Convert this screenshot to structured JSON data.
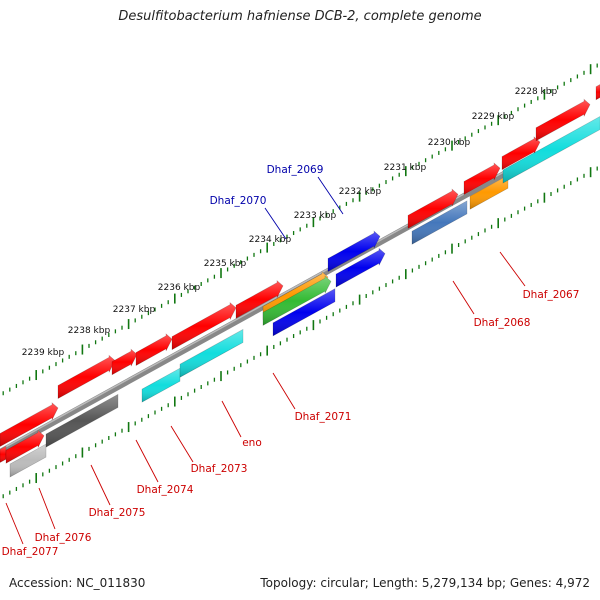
{
  "map": {
    "title": "Desulfitobacterium hafniense DCB-2, complete genome",
    "accession": "Accession: NC_011830",
    "summary": "Topology: circular; Length: 5,279,134 bp; Genes: 4,972"
  },
  "ticks": [
    "2228 kbp",
    "2229 kbp",
    "2230 kbp",
    "2231 kbp",
    "2232 kbp",
    "2233 kbp",
    "2234 kbp",
    "2235 kbp",
    "2236 kbp",
    "2237 kbp",
    "2238 kbp",
    "2239 kbp"
  ],
  "gene_labels": [
    "Dhaf_2069",
    "Dhaf_2070",
    "Dhaf_2067",
    "Dhaf_2068",
    "Dhaf_2071",
    "eno",
    "Dhaf_2073",
    "Dhaf_2074",
    "Dhaf_2075",
    "Dhaf_2076",
    "Dhaf_2077"
  ],
  "colors": {
    "forward": "#ff0000",
    "blue": "#0000ee",
    "cyan": "#11dddd",
    "steel": "#4477bb",
    "orange": "#ff9900",
    "green": "#33bb33",
    "dark_gray": "#555555",
    "light_gray": "#bbbbbb",
    "backbone": "#777777",
    "tick": "#117711",
    "label_blue": "#0000aa",
    "label_red": "#cc0000"
  }
}
